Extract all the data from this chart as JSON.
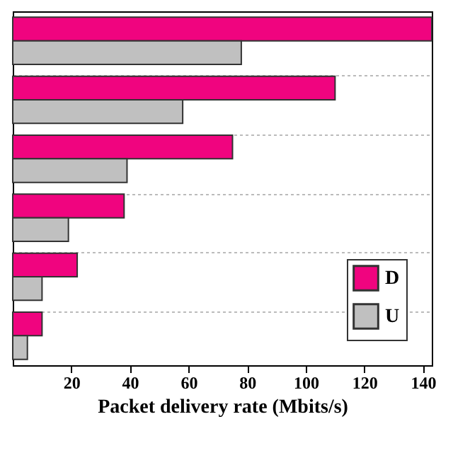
{
  "chart_data": {
    "type": "bar",
    "orientation": "horizontal",
    "xlabel": "Packet delivery rate (Mbits/s)",
    "categories": [
      null,
      null,
      null,
      null,
      null,
      null
    ],
    "series": [
      {
        "name": "D",
        "color": "#f0047f",
        "values": [
          143,
          110,
          75,
          38,
          22,
          10
        ]
      },
      {
        "name": "U",
        "color": "#c0c0c0",
        "values": [
          78,
          58,
          39,
          19,
          10,
          5
        ]
      }
    ],
    "xlim": [
      0,
      143
    ],
    "xticks": [
      20,
      40,
      60,
      80,
      100,
      120,
      140
    ],
    "grid": "y",
    "legend": "bottom right",
    "tick_labels": "x"
  }
}
